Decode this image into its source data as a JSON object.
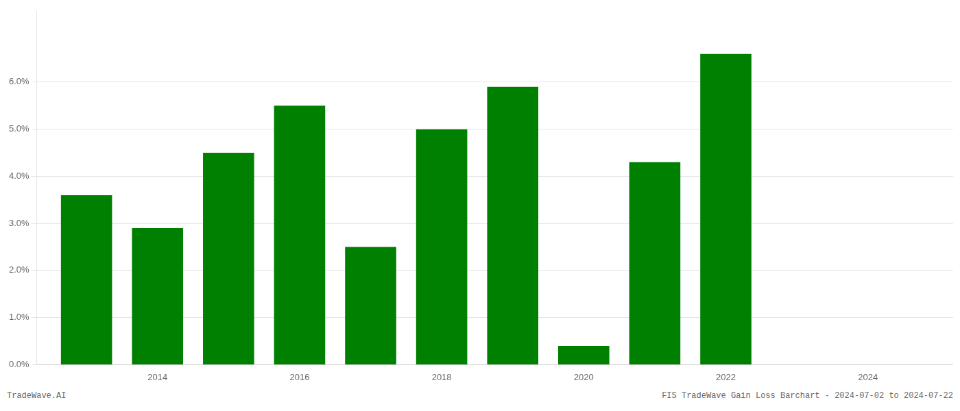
{
  "chart_data": {
    "type": "bar",
    "x": [
      2013,
      2014,
      2015,
      2016,
      2017,
      2018,
      2019,
      2020,
      2021,
      2022,
      2023
    ],
    "values": [
      0.036,
      0.029,
      0.045,
      0.055,
      0.025,
      0.05,
      0.059,
      0.004,
      0.043,
      0.066,
      0.0
    ],
    "color": "#008000",
    "xlim": [
      2012.3,
      2025.2
    ],
    "xticks": [
      2014,
      2016,
      2018,
      2020,
      2022,
      2024
    ],
    "ylim": [
      0,
      0.075
    ],
    "yticks": [
      {
        "value": 0.0,
        "label": "0.0%"
      },
      {
        "value": 0.01,
        "label": "1.0%"
      },
      {
        "value": 0.02,
        "label": "2.0%"
      },
      {
        "value": 0.03,
        "label": "3.0%"
      },
      {
        "value": 0.04,
        "label": "4.0%"
      },
      {
        "value": 0.05,
        "label": "5.0%"
      },
      {
        "value": 0.06,
        "label": "6.0%"
      }
    ],
    "grid": true,
    "annotations": [
      "TradeWave.AI",
      "FIS TradeWave Gain Loss Barchart - 2024-07-02 to 2024-07-22"
    ]
  }
}
